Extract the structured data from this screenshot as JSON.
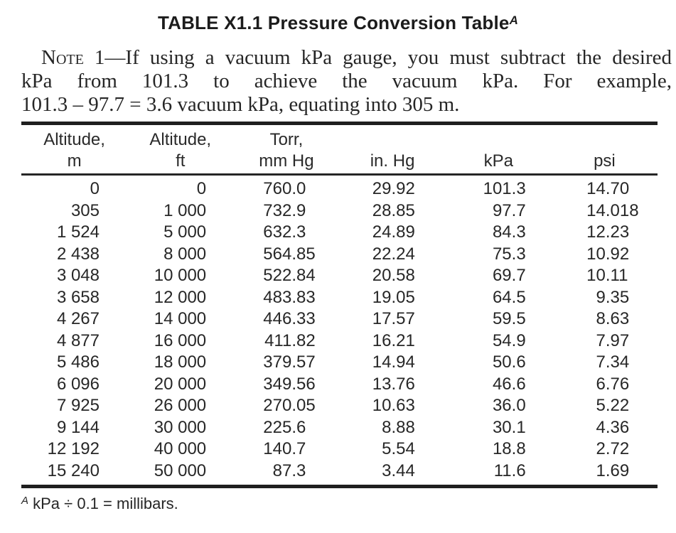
{
  "title": {
    "text": "TABLE X1.1 Pressure Conversion Table",
    "superscript": "A"
  },
  "note": {
    "label": "Note",
    "line1_rest": " 1—If using a vacuum kPa gauge, you must subtract the desired",
    "line2": "kPa from 101.3 to achieve the vacuum kPa. For example,",
    "line3": "101.3 – 97.7 = 3.6 vacuum kPa, equating into 305 m."
  },
  "table": {
    "columns": [
      {
        "line1": "Altitude,",
        "line2": "m"
      },
      {
        "line1": "Altitude,",
        "line2": "ft"
      },
      {
        "line1": "Torr,",
        "line2": "mm Hg"
      },
      {
        "line1": "",
        "line2": "in. Hg"
      },
      {
        "line1": "",
        "line2": "kPa"
      },
      {
        "line1": "",
        "line2": "psi"
      }
    ],
    "rows": [
      [
        "0",
        "0",
        "760.0",
        "29.92",
        "101.3",
        "14.70"
      ],
      [
        "305",
        "1 000",
        "732.9",
        "28.85",
        "97.7",
        "14.018"
      ],
      [
        "1 524",
        "5 000",
        "632.3",
        "24.89",
        "84.3",
        "12.23"
      ],
      [
        "2 438",
        "8 000",
        "564.85",
        "22.24",
        "75.3",
        "10.92"
      ],
      [
        "3 048",
        "10 000",
        "522.84",
        "20.58",
        "69.7",
        "10.11"
      ],
      [
        "3 658",
        "12 000",
        "483.83",
        "19.05",
        "64.5",
        "9.35"
      ],
      [
        "4 267",
        "14 000",
        "446.33",
        "17.57",
        "59.5",
        "8.63"
      ],
      [
        "4 877",
        "16 000",
        "411.82",
        "16.21",
        "54.9",
        "7.97"
      ],
      [
        "5 486",
        "18 000",
        "379.57",
        "14.94",
        "50.6",
        "7.34"
      ],
      [
        "6 096",
        "20 000",
        "349.56",
        "13.76",
        "46.6",
        "6.76"
      ],
      [
        "7 925",
        "26 000",
        "270.05",
        "10.63",
        "36.0",
        "5.22"
      ],
      [
        "9 144",
        "30 000",
        "225.6",
        "8.88",
        "30.1",
        "4.36"
      ],
      [
        "12 192",
        "40 000",
        "140.7",
        "5.54",
        "18.8",
        "2.72"
      ],
      [
        "15 240",
        "50 000",
        "87.3",
        "3.44",
        "11.6",
        "1.69"
      ]
    ]
  },
  "footnote": {
    "superscript": "A",
    "text": " kPa ÷ 0.1 = millibars."
  },
  "colors": {
    "ink": "#232323",
    "paper": "#ffffff",
    "rule": "#1f1f1f"
  }
}
